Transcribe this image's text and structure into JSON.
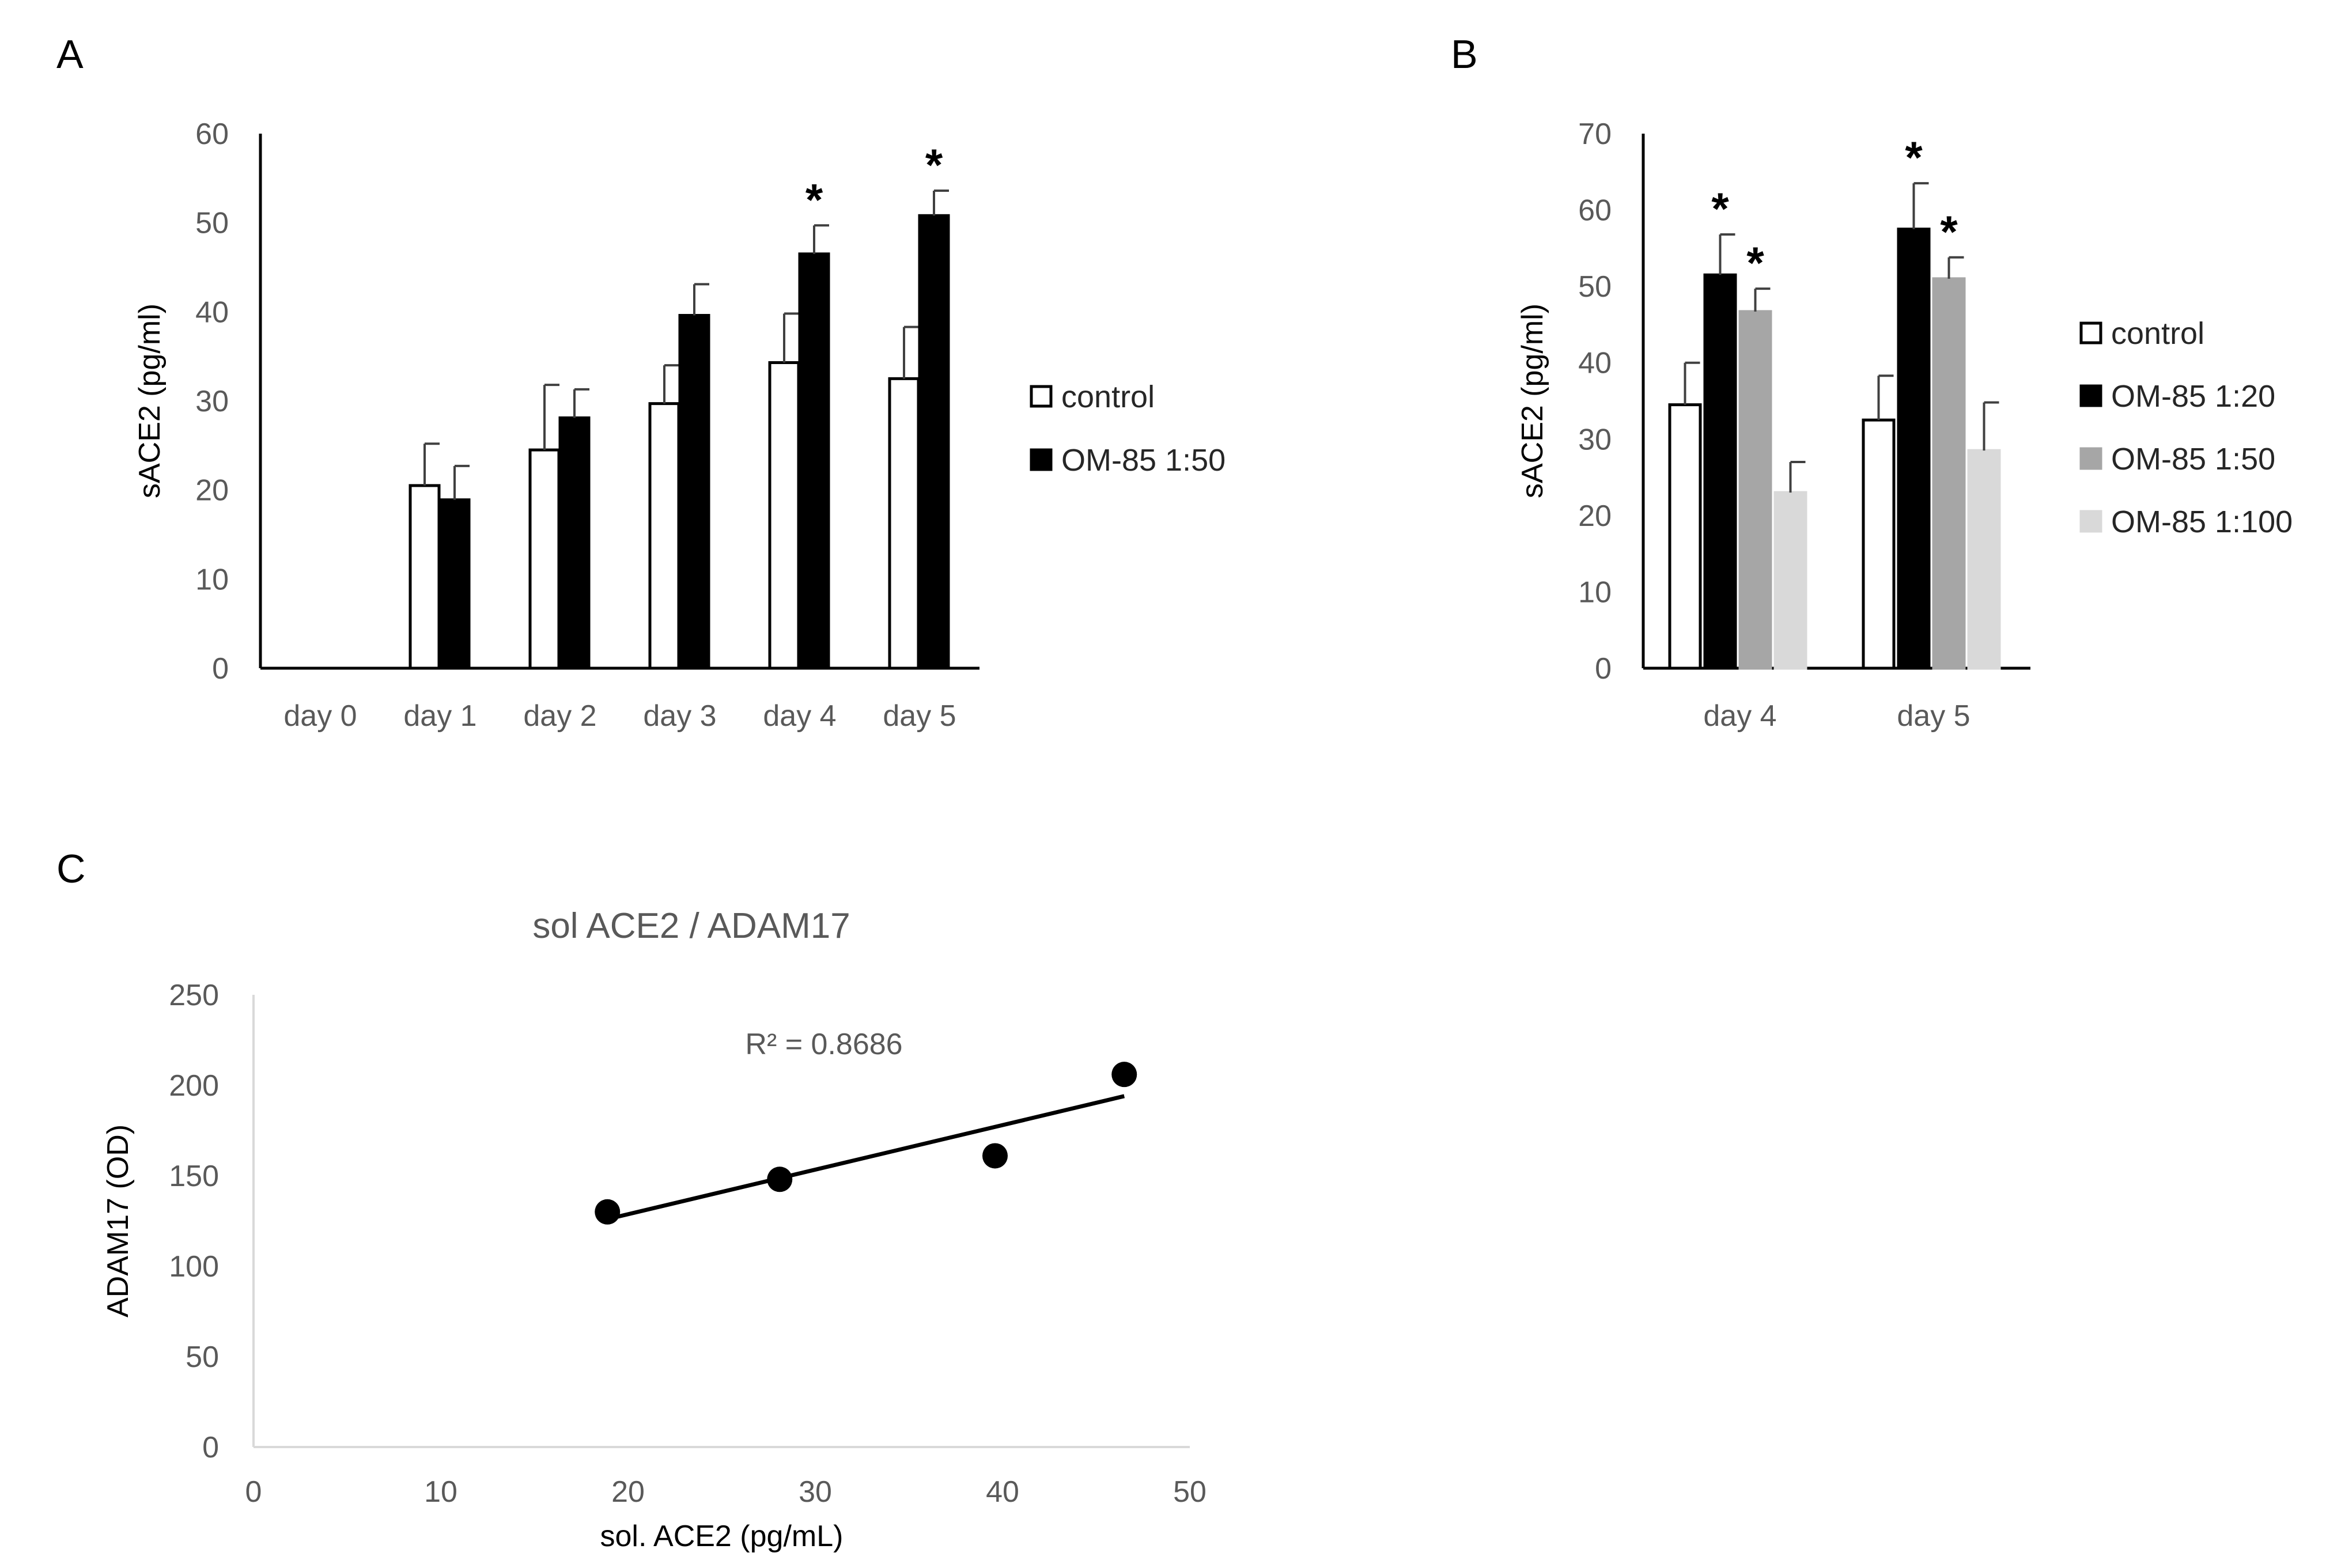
{
  "chart_data": [
    {
      "panel": "A",
      "type": "bar",
      "ylabel": "sACE2 (pg/ml)",
      "ylim": [
        0,
        60
      ],
      "yticks": [
        0,
        10,
        20,
        30,
        40,
        50,
        60
      ],
      "categories": [
        "day 0",
        "day 1",
        "day 2",
        "day 3",
        "day 4",
        "day 5"
      ],
      "series": [
        {
          "name": "control",
          "color": "#ffffff",
          "values": [
            0,
            20.5,
            24.5,
            29.7,
            34.3,
            32.5
          ],
          "errors": [
            0,
            4.7,
            7.3,
            4.3,
            5.5,
            5.8
          ],
          "significant": [
            false,
            false,
            false,
            false,
            false,
            false
          ]
        },
        {
          "name": "OM-85 1:50",
          "color": "#000000",
          "values": [
            0,
            18.9,
            28.1,
            39.6,
            46.5,
            50.8
          ],
          "errors": [
            0,
            3.8,
            3.2,
            3.5,
            3.2,
            2.8
          ],
          "significant": [
            false,
            false,
            false,
            false,
            true,
            true
          ]
        }
      ],
      "annotation": "*",
      "legend": "right"
    },
    {
      "panel": "B",
      "type": "bar",
      "ylabel": "sACE2 (pg/ml)",
      "ylim": [
        0,
        70
      ],
      "yticks": [
        0,
        10,
        20,
        30,
        40,
        50,
        60,
        70
      ],
      "categories": [
        "day 4",
        "day 5"
      ],
      "series": [
        {
          "name": "control",
          "color": "#ffffff",
          "values": [
            34.5,
            32.5
          ],
          "errors": [
            5.5,
            5.8
          ],
          "significant": [
            false,
            false
          ]
        },
        {
          "name": "OM-85 1:20",
          "color": "#000000",
          "values": [
            51.5,
            57.5
          ],
          "errors": [
            5.3,
            6.0
          ],
          "significant": [
            true,
            true
          ]
        },
        {
          "name": "OM-85 1:50",
          "color": "#a6a6a6",
          "values": [
            46.7,
            51.0
          ],
          "errors": [
            3.0,
            2.8
          ],
          "significant": [
            true,
            true
          ]
        },
        {
          "name": "OM-85 1:100",
          "color": "#d9d9d9",
          "values": [
            23.0,
            28.5
          ],
          "errors": [
            4.0,
            6.3
          ],
          "significant": [
            false,
            false
          ]
        }
      ],
      "annotation": "*",
      "legend": "right"
    },
    {
      "panel": "C",
      "type": "scatter",
      "title": "sol ACE2 / ADAM17",
      "xlabel": "sol. ACE2 (pg/mL)",
      "ylabel": "ADAM17 (OD)",
      "xlim": [
        0,
        50
      ],
      "ylim": [
        0,
        250
      ],
      "xticks": [
        0,
        10,
        20,
        30,
        40,
        50
      ],
      "yticks": [
        0,
        50,
        100,
        150,
        200,
        250
      ],
      "points": [
        {
          "x": 18.9,
          "y": 130
        },
        {
          "x": 28.1,
          "y": 148
        },
        {
          "x": 39.6,
          "y": 161
        },
        {
          "x": 46.5,
          "y": 206
        }
      ],
      "trendline": {
        "x_start": 18.9,
        "y_start": 126,
        "x_end": 46.5,
        "y_end": 194
      },
      "annotation": "R² = 0.8686"
    }
  ]
}
